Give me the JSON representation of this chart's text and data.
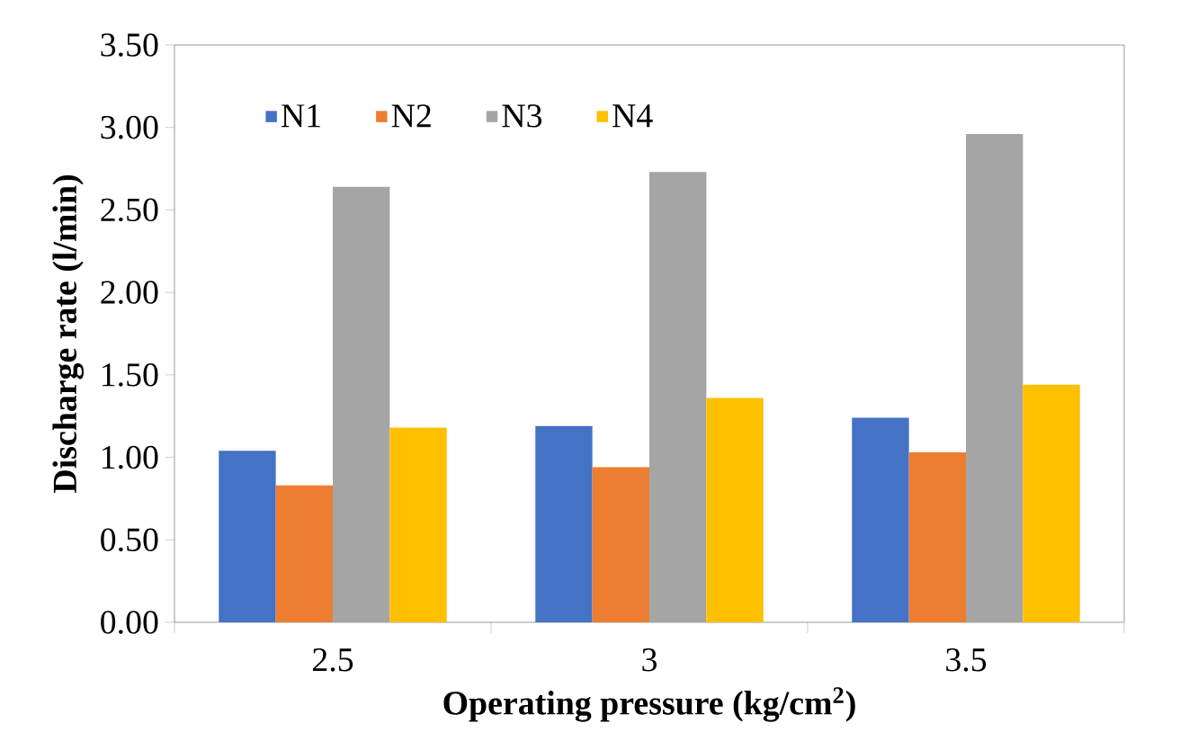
{
  "chart_data": {
    "type": "bar",
    "xlabel": "Operating pressure (kg/cm$^{2}$)",
    "ylabel": "Discharge rate (l/min)",
    "categories": [
      "2.5",
      "3",
      "3.5"
    ],
    "series": [
      {
        "name": "N1",
        "color": "#4472c4",
        "values": [
          1.04,
          1.19,
          1.24
        ]
      },
      {
        "name": "N2",
        "color": "#ed7d31",
        "values": [
          0.83,
          0.94,
          1.03
        ]
      },
      {
        "name": "N3",
        "color": "#a5a5a5",
        "values": [
          2.64,
          2.73,
          2.96
        ]
      },
      {
        "name": "N4",
        "color": "#ffc000",
        "values": [
          1.18,
          1.36,
          1.44
        ]
      }
    ],
    "ylim": [
      0,
      3.5
    ],
    "yticks": [
      {
        "value": 0,
        "label": "0.00"
      },
      {
        "value": 0.5,
        "label": "0.50"
      },
      {
        "value": 1,
        "label": "1.00"
      },
      {
        "value": 1.5,
        "label": "1.50"
      },
      {
        "value": 2,
        "label": "2.00"
      },
      {
        "value": 2.5,
        "label": "2.50"
      },
      {
        "value": 3,
        "label": "3.00"
      },
      {
        "value": 3.5,
        "label": "3.50"
      }
    ],
    "legend": "top left",
    "grid": false
  }
}
